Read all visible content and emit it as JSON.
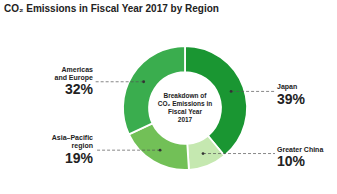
{
  "chart_data": {
    "type": "donut",
    "title": "CO₂ Emissions in Fiscal Year 2017 by Region",
    "categories": [
      "Japan",
      "Greater China",
      "Asia–Pacific\nregion",
      "Americas\nand Europe"
    ],
    "values": [
      39,
      10,
      19,
      32
    ],
    "value_labels": [
      "39%",
      "10%",
      "19%",
      "32%"
    ],
    "colors": [
      "#1a9632",
      "#c5e8b0",
      "#72c057",
      "#3aad4e"
    ],
    "data_labels": true,
    "annotations": [
      "Breakdown of\nCO₂ Emissions in\nFiscal Year\n2017"
    ]
  }
}
